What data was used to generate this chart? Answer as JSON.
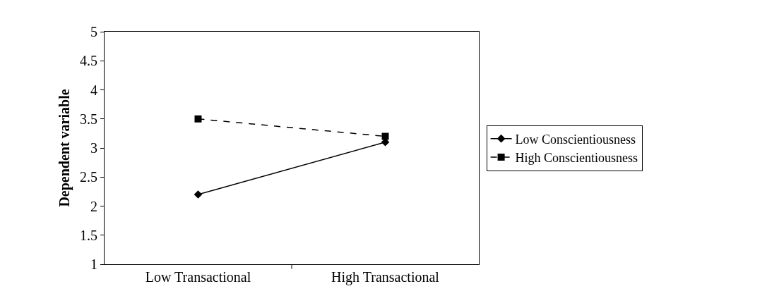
{
  "chart_data": {
    "type": "line",
    "ylabel": "Dependent variable",
    "categories": [
      "Low Transactional",
      "High Transactional"
    ],
    "series": [
      {
        "name": "Low Conscientiousness",
        "color": "#000000",
        "values": [
          2.2,
          3.1
        ],
        "marker": "diamond",
        "line_style": "solid"
      },
      {
        "name": "High Conscientiousness",
        "color": "#000000",
        "values": [
          3.5,
          3.2
        ],
        "marker": "square",
        "line_style": "dashed"
      }
    ],
    "ylim": [
      1,
      5
    ],
    "yticks": [
      1,
      1.5,
      2,
      2.5,
      3,
      3.5,
      4,
      4.5,
      5
    ],
    "grid": false,
    "legend": "right"
  }
}
